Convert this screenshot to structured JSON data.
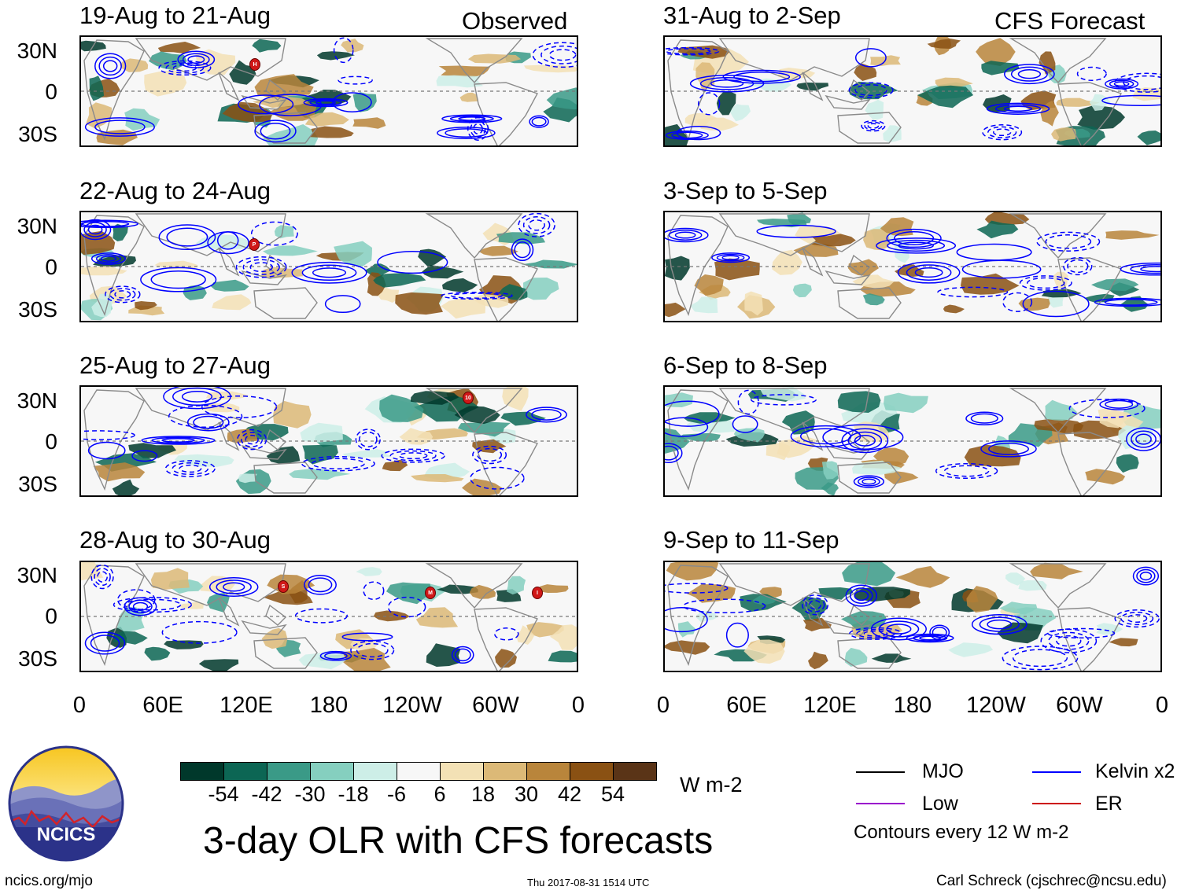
{
  "observed_label": "Observed",
  "forecast_label": "CFS Forecast",
  "observed_panels": [
    {
      "title": "19-Aug to 21-Aug",
      "storms": [
        "H"
      ]
    },
    {
      "title": "22-Aug to 24-Aug",
      "storms": [
        "P"
      ]
    },
    {
      "title": "25-Aug to 27-Aug",
      "storms": [
        "10"
      ]
    },
    {
      "title": "28-Aug to 30-Aug",
      "storms": [
        "S",
        "M",
        "I"
      ]
    }
  ],
  "forecast_panels": [
    {
      "title": "31-Aug to 2-Sep"
    },
    {
      "title": "3-Sep to 5-Sep"
    },
    {
      "title": "6-Sep to 8-Sep"
    },
    {
      "title": "9-Sep to 11-Sep"
    }
  ],
  "lat_labels": [
    "30N",
    "0",
    "30S"
  ],
  "lon_labels": [
    "0",
    "60E",
    "120E",
    "180",
    "120W",
    "60W",
    "0"
  ],
  "colorbar": {
    "labels": [
      "-54",
      "-42",
      "-30",
      "-18",
      "-6",
      "6",
      "18",
      "30",
      "42",
      "54"
    ],
    "colors": [
      "#00382b",
      "#0c6654",
      "#3a9a87",
      "#85cfbf",
      "#cdeee7",
      "#f7f7f7",
      "#f3e1b5",
      "#dcb977",
      "#b9853b",
      "#8a5113",
      "#5a3417"
    ],
    "units": "W m-2"
  },
  "legend": {
    "items": [
      {
        "label": "MJO",
        "color": "#000000"
      },
      {
        "label": "Kelvin x2",
        "color": "#0000ff"
      },
      {
        "label": "Low",
        "color": "#9900cc"
      },
      {
        "label": "ER",
        "color": "#cc0000"
      }
    ],
    "note": "Contours every 12 W m-2"
  },
  "main_title": "3-day OLR with CFS forecasts",
  "logo_text": "NCICS",
  "footer": {
    "left": "ncics.org/mjo",
    "center": "Thu 2017-08-31 1514 UTC",
    "right": "Carl Schreck (cjschrec@ncsu.edu)"
  }
}
